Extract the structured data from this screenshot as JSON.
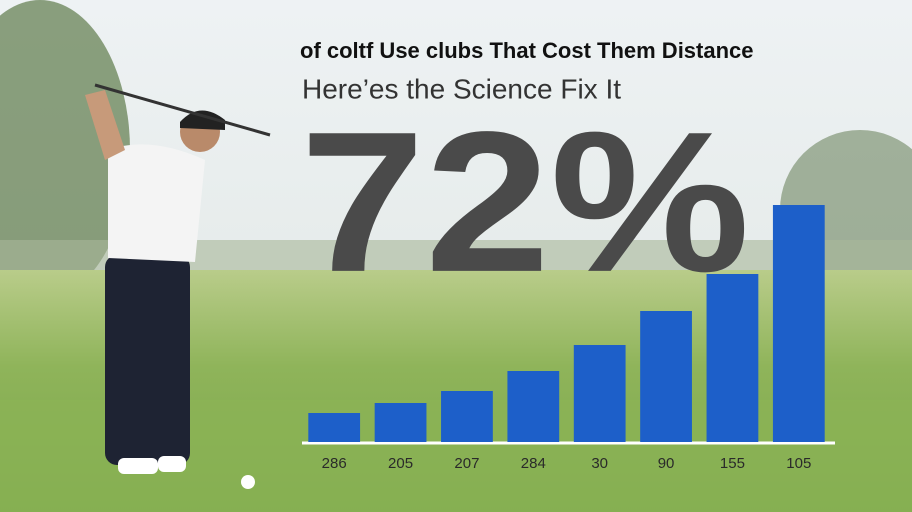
{
  "chart_data": {
    "type": "bar",
    "title": "of coltf Use clubs That Cost Them Distance",
    "subtitle": "Here’es the Science Fix It",
    "annotation": "72%",
    "categories": [
      "286",
      "205",
      "207",
      "284",
      "30",
      "90",
      "155",
      "105"
    ],
    "values": [
      29,
      39,
      51,
      71,
      97,
      131,
      168,
      237
    ],
    "color": "#1d5fc9",
    "ylim": [
      0,
      250
    ]
  }
}
